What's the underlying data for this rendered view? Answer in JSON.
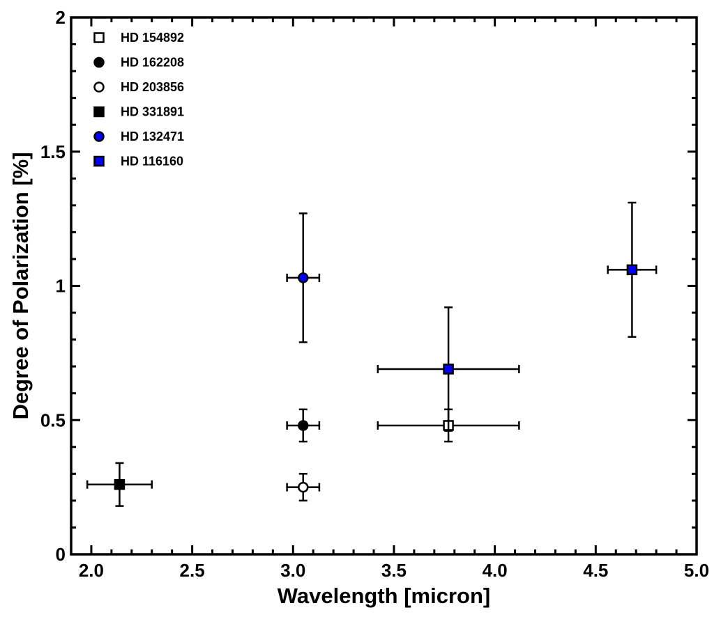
{
  "chart_data": {
    "type": "scatter",
    "title": "",
    "xlabel": "Wavelength [micron]",
    "ylabel": "Degree of Polarization [%]",
    "xlim": [
      1.9,
      5.0
    ],
    "ylim": [
      0,
      2.0
    ],
    "x_ticks": [
      "2.0",
      "2.5",
      "3.0",
      "3.5",
      "4.0",
      "4.5",
      "5.0"
    ],
    "x_tick_values": [
      2.0,
      2.5,
      3.0,
      3.5,
      4.0,
      4.5,
      5.0
    ],
    "y_ticks": [
      "0",
      "0.5",
      "1",
      "1.5",
      "2"
    ],
    "y_tick_values": [
      0,
      0.5,
      1.0,
      1.5,
      2.0
    ],
    "grid": false,
    "legend_position": "top-left",
    "series": [
      {
        "name": "HD 154892",
        "marker": "square",
        "fill": "#ffffff",
        "points": [
          {
            "x": 3.77,
            "y": 0.48,
            "xerr": [
              0.35,
              0.35
            ],
            "yerr": [
              0.06,
              0.06
            ]
          }
        ]
      },
      {
        "name": "HD 162208",
        "marker": "circle",
        "fill": "#000000",
        "points": [
          {
            "x": 3.05,
            "y": 0.48,
            "xerr": [
              0.08,
              0.08
            ],
            "yerr": [
              0.06,
              0.06
            ]
          }
        ]
      },
      {
        "name": "HD 203856",
        "marker": "circle",
        "fill": "#ffffff",
        "points": [
          {
            "x": 3.05,
            "y": 0.25,
            "xerr": [
              0.08,
              0.08
            ],
            "yerr": [
              0.05,
              0.05
            ]
          }
        ]
      },
      {
        "name": "HD 331891",
        "marker": "square",
        "fill": "#000000",
        "points": [
          {
            "x": 2.14,
            "y": 0.26,
            "xerr": [
              0.16,
              0.16
            ],
            "yerr": [
              0.08,
              0.08
            ]
          }
        ]
      },
      {
        "name": "HD 132471",
        "marker": "circle",
        "fill": "#0000ff",
        "points": [
          {
            "x": 3.05,
            "y": 1.03,
            "xerr": [
              0.08,
              0.08
            ],
            "yerr": [
              0.24,
              0.24
            ]
          }
        ]
      },
      {
        "name": "HD 116160",
        "marker": "square",
        "fill": "#0000ff",
        "points": [
          {
            "x": 3.77,
            "y": 0.69,
            "xerr": [
              0.35,
              0.35
            ],
            "yerr": [
              0.23,
              0.23
            ]
          },
          {
            "x": 4.68,
            "y": 1.06,
            "xerr": [
              0.12,
              0.12
            ],
            "yerr": [
              0.25,
              0.25
            ]
          }
        ]
      }
    ]
  }
}
